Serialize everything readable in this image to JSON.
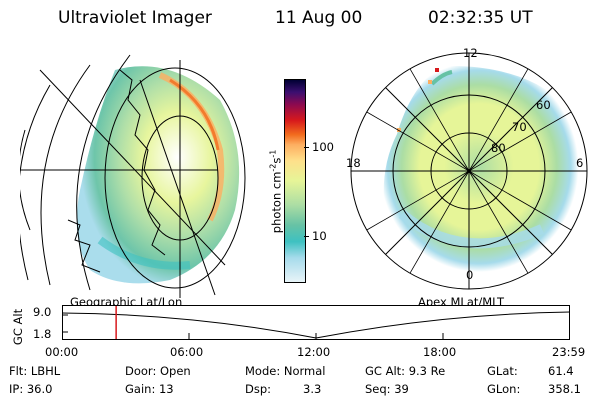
{
  "header": {
    "title": "Ultraviolet Imager",
    "date": "11 Aug 00",
    "time": "02:32:35 UT"
  },
  "colorbar": {
    "unit": "photon cm",
    "unit_exp1": "-2",
    "unit_s": "s",
    "unit_exp2": "-1",
    "tick_100": "100",
    "tick_10": "10",
    "colors": [
      "#000033",
      "#3b0f70",
      "#8b0a50",
      "#d7191c",
      "#f26b1d",
      "#fdae61",
      "#fee08b",
      "#e6f598",
      "#abdda4",
      "#66c2a5",
      "#3ec1c1",
      "#a6dbeb",
      "#e8f4f8"
    ]
  },
  "polar": {
    "mlt_12": "12",
    "mlt_18": "18",
    "mlt_6": "6",
    "mlt_0": "0",
    "lat_60": "60",
    "lat_70": "70",
    "lat_80": "80"
  },
  "labels": {
    "geographic": "Geographic Lat/Lon",
    "apex": "Apex MLat/MLT"
  },
  "timeline": {
    "y_axis_label": "GC Alt",
    "y_max": "9.0",
    "y_min": "1.8",
    "ticks": [
      "00:00",
      "06:00",
      "12:00",
      "18:00",
      "23:59"
    ],
    "current_fraction": 0.105
  },
  "status": {
    "flt": "Flt: LBHL",
    "door": "Door: Open",
    "mode": "Mode: Normal",
    "gc_alt": "GC Alt: 9.3 Re",
    "glat": "GLat:",
    "glat_val": "61.4",
    "ip": "IP: 36.0",
    "gain": "Gain: 13",
    "dsp": "Dsp:",
    "dsp_val": "3.3",
    "seq": "Seq: 39",
    "glon": "GLon:",
    "glon_val": "358.1"
  }
}
